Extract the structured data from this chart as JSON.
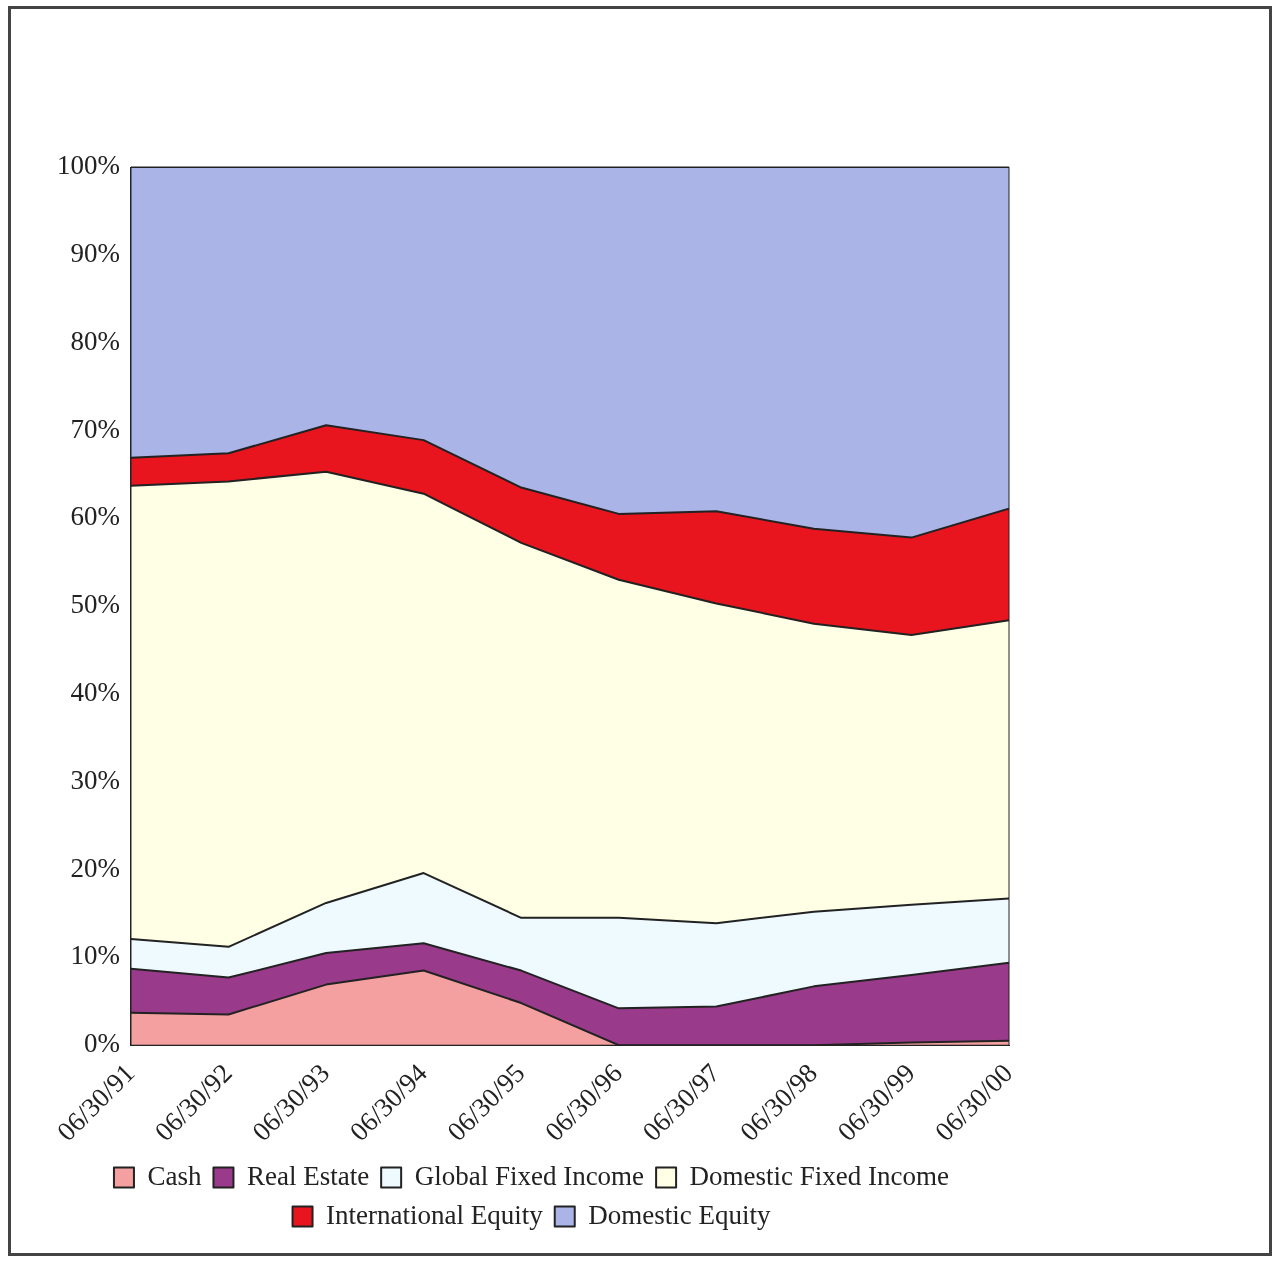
{
  "chart_data": {
    "type": "area",
    "stacked": true,
    "categories": [
      "06/30/91",
      "06/30/92",
      "06/30/93",
      "06/30/94",
      "06/30/95",
      "06/30/96",
      "06/30/97",
      "06/30/98",
      "06/30/99",
      "06/30/00"
    ],
    "series": [
      {
        "name": "Cash",
        "color": "#f4a0a0",
        "values": [
          3.7,
          3.5,
          6.9,
          8.5,
          4.8,
          0,
          0,
          0,
          0.3,
          0.5
        ]
      },
      {
        "name": "Real Estate",
        "color": "#9a3a8a",
        "values": [
          5.0,
          4.2,
          3.6,
          3.1,
          3.7,
          4.2,
          4.4,
          6.7,
          7.7,
          8.9
        ]
      },
      {
        "name": "Global Fixed Income",
        "color": "#eefaff",
        "values": [
          3.4,
          3.5,
          5.7,
          8.0,
          6.0,
          10.3,
          9.5,
          8.5,
          8.0,
          7.3
        ]
      },
      {
        "name": "Domestic Fixed Income",
        "color": "#ffffe6",
        "values": [
          51.6,
          53.0,
          49.1,
          43.2,
          42.7,
          38.5,
          36.4,
          32.8,
          30.7,
          31.7
        ]
      },
      {
        "name": "International Equity",
        "color": "#e8141e",
        "values": [
          3.2,
          3.2,
          5.3,
          6.1,
          6.3,
          7.5,
          10.5,
          10.8,
          11.1,
          12.7
        ]
      },
      {
        "name": "Domestic Equity",
        "color": "#aab4e6",
        "values": [
          33.1,
          32.6,
          29.4,
          31.1,
          36.5,
          39.5,
          39.2,
          41.2,
          42.2,
          38.9
        ]
      }
    ],
    "ylim": [
      0,
      100
    ],
    "yticks": [
      {
        "value": 0,
        "label": "0%"
      },
      {
        "value": 10,
        "label": "10%"
      },
      {
        "value": 20,
        "label": "20%"
      },
      {
        "value": 30,
        "label": "30%"
      },
      {
        "value": 40,
        "label": "40%"
      },
      {
        "value": 50,
        "label": "50%"
      },
      {
        "value": 60,
        "label": "60%"
      },
      {
        "value": 70,
        "label": "70%"
      },
      {
        "value": 80,
        "label": "80%"
      },
      {
        "value": 90,
        "label": "90%"
      },
      {
        "value": 100,
        "label": "100%"
      }
    ],
    "grid": false,
    "legend": "bottom",
    "marker": "none",
    "line_style": "solid"
  }
}
